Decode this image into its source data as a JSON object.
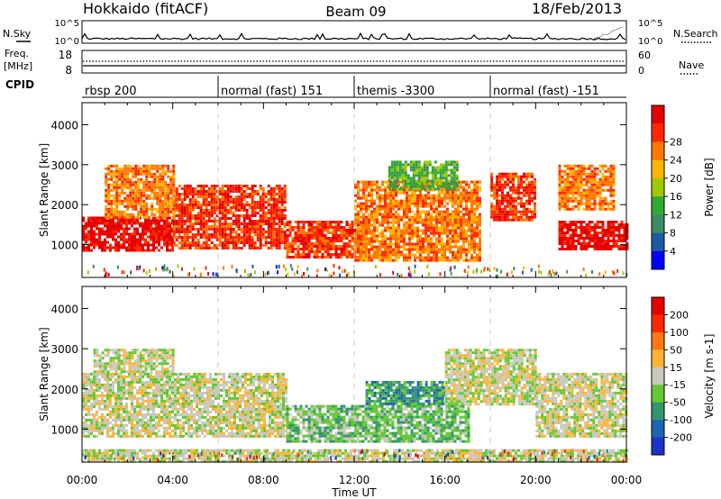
{
  "header": {
    "station": "Hokkaido (fitACF)",
    "beam": "Beam 09",
    "date": "18/Feb/2013"
  },
  "top_panels": {
    "nsky_label": "N.Sky",
    "nsearch_label": "N.Search",
    "noise_ticks_left": [
      "10^5",
      "10^0"
    ],
    "noise_ticks_right": [
      "10^5",
      "10^0"
    ],
    "freq_label": "Freq.",
    "freq_unit": "[MHz]",
    "freq_ticks": [
      "18",
      "8"
    ],
    "nave_label": "Nave",
    "nave_ticks": [
      "60",
      "0"
    ],
    "cpid_label": "CPID",
    "cpid_segments": [
      {
        "label": "rbsp 200",
        "start_hour": 0
      },
      {
        "label": "normal (fast) 151",
        "start_hour": 6
      },
      {
        "label": "themis -3300",
        "start_hour": 12
      },
      {
        "label": "normal (fast) -151",
        "start_hour": 18
      }
    ]
  },
  "chart_data": [
    {
      "type": "heatmap",
      "name": "power",
      "ylabel": "Slant Range [km]",
      "yticks": [
        "1000",
        "2000",
        "3000",
        "4000"
      ],
      "ylim_km": [
        180,
        4550
      ],
      "colorbar_label": "Power [dB]",
      "colorbar_ticks": [
        "4",
        "8",
        "12",
        "16",
        "20",
        "24",
        "28"
      ],
      "colors": [
        "#0000ff",
        "#1e5aa0",
        "#3c8c64",
        "#32aa32",
        "#a0c800",
        "#ffb400",
        "#ff7800",
        "#ff2800",
        "#e60000"
      ],
      "regions": [
        {
          "t": [
            0.0,
            4.0
          ],
          "r": [
            850,
            1700
          ],
          "level": 8
        },
        {
          "t": [
            4.0,
            9.0
          ],
          "r": [
            900,
            2500
          ],
          "level": 7
        },
        {
          "t": [
            1.0,
            4.0
          ],
          "r": [
            1700,
            3000
          ],
          "level": 6
        },
        {
          "t": [
            9.0,
            12.5
          ],
          "r": [
            700,
            1600
          ],
          "level": 7
        },
        {
          "t": [
            12.0,
            17.5
          ],
          "r": [
            600,
            2600
          ],
          "level": 6
        },
        {
          "t": [
            13.5,
            16.5
          ],
          "r": [
            2400,
            3100
          ],
          "level": 3
        },
        {
          "t": [
            18.0,
            20.0
          ],
          "r": [
            1600,
            2800
          ],
          "level": 7
        },
        {
          "t": [
            21.0,
            24.0
          ],
          "r": [
            900,
            1600
          ],
          "level": 8
        },
        {
          "t": [
            21.0,
            23.5
          ],
          "r": [
            1900,
            3000
          ],
          "level": 6
        }
      ]
    },
    {
      "type": "heatmap",
      "name": "velocity",
      "ylabel": "Slant Range [km]",
      "yticks": [
        "1000",
        "2000",
        "3000",
        "4000"
      ],
      "ylim_km": [
        180,
        4550
      ],
      "colorbar_label": "Velocity [m s-1]",
      "colorbar_ticks": [
        "200",
        "100",
        "50",
        "15",
        "-15",
        "-50",
        "-100",
        "-200"
      ],
      "colors": [
        "#1e32c8",
        "#1e64b4",
        "#32966e",
        "#64c832",
        "#c8c8be",
        "#ffb432",
        "#ff7814",
        "#ff2800",
        "#e60000"
      ],
      "regions": [
        {
          "t": [
            0.0,
            9.0
          ],
          "r": [
            800,
            2400
          ],
          "level": 4
        },
        {
          "t": [
            0.5,
            4.0
          ],
          "r": [
            2400,
            3000
          ],
          "level": 4
        },
        {
          "t": [
            9.0,
            17.0
          ],
          "r": [
            700,
            1600
          ],
          "level": 3
        },
        {
          "t": [
            12.5,
            16.0
          ],
          "r": [
            1600,
            2200
          ],
          "level": 2
        },
        {
          "t": [
            16.0,
            20.0
          ],
          "r": [
            1600,
            3000
          ],
          "level": 4
        },
        {
          "t": [
            20.0,
            24.0
          ],
          "r": [
            800,
            2400
          ],
          "level": 4
        },
        {
          "t": [
            0.0,
            24.0
          ],
          "r": [
            200,
            500
          ],
          "level": 4
        }
      ]
    }
  ],
  "x_axis": {
    "ticks": [
      "00:00",
      "04:00",
      "08:00",
      "12:00",
      "16:00",
      "20:00",
      "00:00"
    ],
    "label": "Time UT"
  }
}
